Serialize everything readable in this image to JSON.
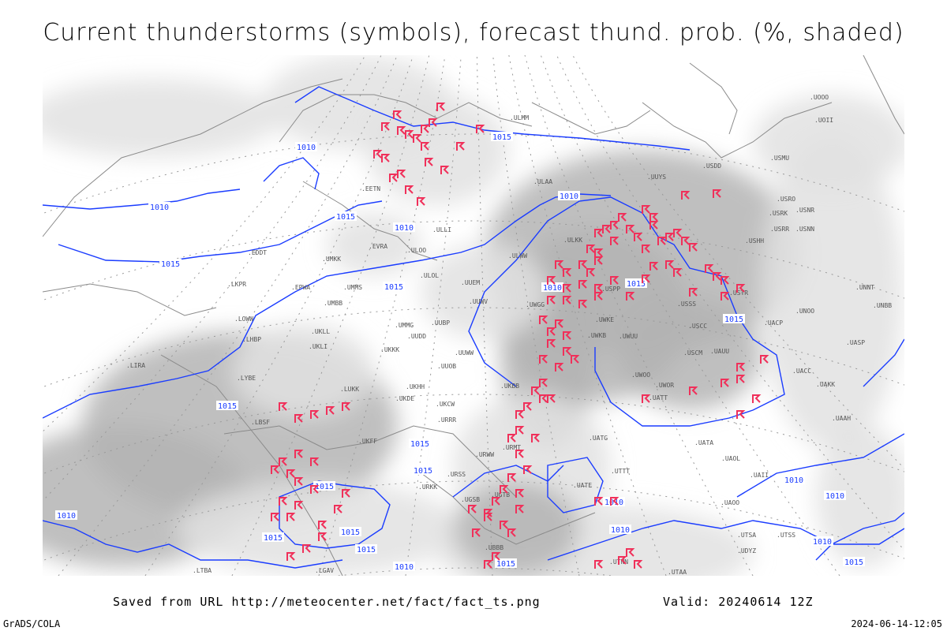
{
  "title": "Current thunderstorms (symbols), forecast thund. prob. (%, shaded)",
  "footer": {
    "saved_from": "Saved from URL http://meteocenter.net/fact/fact_ts.png",
    "valid": "Valid: 20240614 12Z",
    "software": "GrADS/COLA",
    "timestamp": "2024-06-14-12:05"
  },
  "colors": {
    "isobar": "#1a3cff",
    "thunderstorm_symbol": "#f0305a",
    "coastline": "#888888",
    "shading_light": "#e2e2e2",
    "shading_dark": "#b4b4b4"
  },
  "isobar_labels": [
    "1010",
    "1010",
    "1015",
    "1010",
    "1015",
    "1015",
    "1015",
    "1010",
    "1015",
    "1010",
    "1015",
    "1015",
    "1015",
    "1015",
    "1015",
    "1015",
    "1010",
    "1010",
    "1015",
    "1010",
    "1010",
    "1015",
    "1010",
    "1015",
    "1010",
    "1010",
    "1015"
  ],
  "stations": [
    "ULMM",
    "ULOO",
    "UUYS",
    "USDD",
    "USMU",
    "USRO",
    "USRK",
    "USNR",
    "USRR",
    "USNN",
    "USHH",
    "ULAA",
    "ULKK",
    "ULWW",
    "UUEM",
    "UUWV",
    "UWGG",
    "USPP",
    "USSS",
    "USTR",
    "UWKE",
    "UWKB",
    "UWUU",
    "USCC",
    "USCM",
    "UAUU",
    "UWOO",
    "UWOR",
    "UATT",
    "UATG",
    "UATE",
    "UAOL",
    "UACC",
    "UAKK",
    "UAAH",
    "UASP",
    "UACP",
    "UNOO",
    "UNNT",
    "UNBB",
    "UUOB",
    "UUDD",
    "UUBP",
    "UMMG",
    "UKKK",
    "UKDE",
    "UKHH",
    "UKCW",
    "URRR",
    "URWW",
    "URMT",
    "URSS",
    "UGSB",
    "UBBB",
    "UTAA",
    "UTSA",
    "UTSS",
    "LIRA",
    "LYBE",
    "LBSF",
    "LUKK",
    "LHBP",
    "LOWW",
    "LKPR",
    "EPWA",
    "UMMS",
    "UMBB",
    "EVRA",
    "EETN",
    "ULLI",
    "EDDT",
    "UKLL",
    "UKLI",
    "UMKK",
    "UOOO",
    "UOII",
    "ULOL",
    "UUWW",
    "UKFF",
    "UAII",
    "UTNN",
    "UAOO",
    "UATA",
    "UTTT",
    "UDYZ",
    "LGAV",
    "LTBA",
    "UGTB",
    "URKK",
    "UKBB"
  ],
  "thunderstorm_symbol_icon": "thunderstorm-flag-icon"
}
